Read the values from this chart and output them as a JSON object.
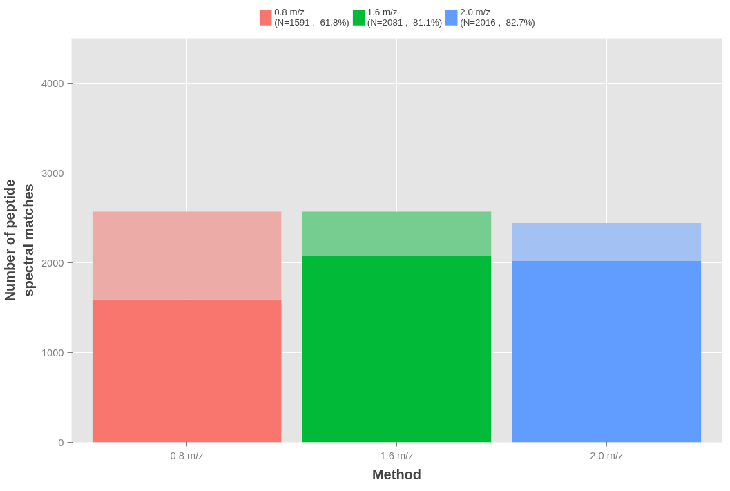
{
  "chart_data": {
    "type": "bar",
    "stacked": true,
    "xlabel": "Method",
    "ylabel": "Number of peptide\nspectral matches",
    "categories": [
      "0.8 m/z",
      "1.6 m/z",
      "2.0 m/z"
    ],
    "series": [
      {
        "name": "0.8 m/z\n(N=1591 ,  61.8%)",
        "color": "#f8766d",
        "values": [
          1590,
          null,
          null
        ]
      },
      {
        "color": "#ecaba6",
        "values": [
          980,
          null,
          null
        ]
      },
      {
        "name": "1.6 m/z\n(N=2081 ,  81.1%)",
        "color": "#00ba38",
        "values": [
          null,
          2080,
          null
        ]
      },
      {
        "color": "#75ce8f",
        "values": [
          null,
          490,
          null
        ]
      },
      {
        "name": "2.0 m/z\n(N=2016 ,  82.7%)",
        "color": "#619cff",
        "values": [
          null,
          null,
          2020
        ]
      },
      {
        "color": "#a3c1f3",
        "values": [
          null,
          null,
          422
        ]
      }
    ],
    "ylim": [
      0,
      4500
    ],
    "yticks": [
      0,
      1000,
      2000,
      3000,
      4000
    ],
    "grid": true,
    "legend": "top"
  }
}
